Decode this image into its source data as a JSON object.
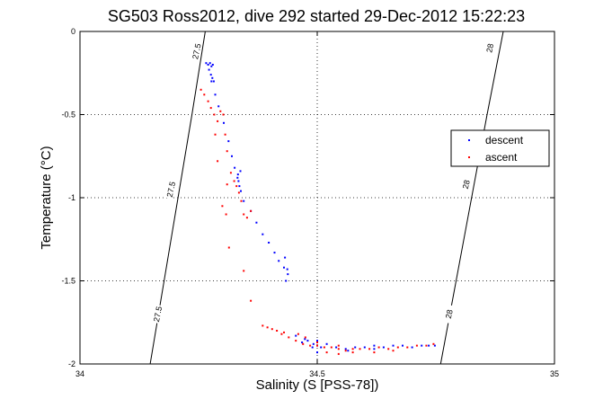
{
  "chart_data": {
    "type": "scatter",
    "title": "SG503 Ross2012, dive 292 started 29-Dec-2012 15:22:23",
    "xlabel": "Salinity (S [PSS-78])",
    "ylabel": "Temperature (°C)",
    "xlim": [
      34,
      35
    ],
    "ylim": [
      -2,
      0
    ],
    "x_ticks": [
      34,
      34.5,
      35
    ],
    "x_tick_labels": [
      "34",
      "34.5",
      "35"
    ],
    "y_ticks": [
      -2,
      -1.5,
      -1,
      -0.5,
      0
    ],
    "y_tick_labels": [
      "-2",
      "-1.5",
      "-1",
      "-0.5",
      "0"
    ],
    "grid": true,
    "legend_position": "right",
    "contours": [
      {
        "label": "27.5",
        "points": [
          [
            34.148,
            -2.0
          ],
          [
            34.236,
            -0.5
          ],
          [
            34.264,
            0.0
          ]
        ]
      },
      {
        "label": "28",
        "points": [
          [
            34.76,
            -2.0
          ],
          [
            34.858,
            -0.5
          ],
          [
            34.892,
            0.0
          ]
        ]
      }
    ],
    "contour_label_positions": [
      {
        "text": "27.5",
        "x": 34.164,
        "y": -1.7
      },
      {
        "text": "27.5",
        "x": 34.192,
        "y": -0.95
      },
      {
        "text": "27.5",
        "x": 34.246,
        "y": -0.12
      },
      {
        "text": "28",
        "x": 34.778,
        "y": -1.7
      },
      {
        "text": "28",
        "x": 34.814,
        "y": -0.92
      },
      {
        "text": "28",
        "x": 34.864,
        "y": -0.1
      }
    ],
    "series": [
      {
        "name": "descent",
        "color": "#0000ff",
        "points": [
          [
            34.266,
            -0.19
          ],
          [
            34.27,
            -0.2
          ],
          [
            34.274,
            -0.19
          ],
          [
            34.277,
            -0.21
          ],
          [
            34.28,
            -0.2
          ],
          [
            34.272,
            -0.23
          ],
          [
            34.276,
            -0.26
          ],
          [
            34.279,
            -0.28
          ],
          [
            34.277,
            -0.3
          ],
          [
            34.282,
            -0.3
          ],
          [
            34.285,
            -0.38
          ],
          [
            34.292,
            -0.45
          ],
          [
            34.303,
            -0.55
          ],
          [
            34.313,
            -0.66
          ],
          [
            34.32,
            -0.75
          ],
          [
            34.326,
            -0.82
          ],
          [
            34.332,
            -0.88
          ],
          [
            34.333,
            -0.86
          ],
          [
            34.334,
            -0.9
          ],
          [
            34.336,
            -0.93
          ],
          [
            34.338,
            -0.84
          ],
          [
            34.339,
            -0.96
          ],
          [
            34.345,
            -1.02
          ],
          [
            34.36,
            -1.08
          ],
          [
            34.372,
            -1.15
          ],
          [
            34.385,
            -1.22
          ],
          [
            34.398,
            -1.27
          ],
          [
            34.41,
            -1.33
          ],
          [
            34.419,
            -1.38
          ],
          [
            34.43,
            -1.42
          ],
          [
            34.434,
            -1.5
          ],
          [
            34.438,
            -1.46
          ],
          [
            34.432,
            -1.36
          ],
          [
            34.437,
            -1.43
          ],
          [
            34.455,
            -1.83
          ],
          [
            34.468,
            -1.87
          ],
          [
            34.48,
            -1.86
          ],
          [
            34.492,
            -1.88
          ],
          [
            34.5,
            -1.89
          ],
          [
            34.508,
            -1.9
          ],
          [
            34.52,
            -1.88
          ],
          [
            34.54,
            -1.9
          ],
          [
            34.56,
            -1.91
          ],
          [
            34.58,
            -1.9
          ],
          [
            34.6,
            -1.9
          ],
          [
            34.62,
            -1.89
          ],
          [
            34.64,
            -1.9
          ],
          [
            34.66,
            -1.89
          ],
          [
            34.68,
            -1.89
          ],
          [
            34.7,
            -1.9
          ],
          [
            34.72,
            -1.89
          ],
          [
            34.735,
            -1.89
          ],
          [
            34.748,
            -1.89
          ],
          [
            34.62,
            -1.91
          ],
          [
            34.565,
            -1.92
          ],
          [
            34.5,
            -1.86
          ],
          [
            34.474,
            -1.85
          ],
          [
            34.49,
            -1.9
          ],
          [
            34.5,
            -1.93
          ]
        ]
      },
      {
        "name": "ascent",
        "color": "#ff0000",
        "points": [
          [
            34.255,
            -0.35
          ],
          [
            34.262,
            -0.38
          ],
          [
            34.27,
            -0.42
          ],
          [
            34.276,
            -0.46
          ],
          [
            34.283,
            -0.5
          ],
          [
            34.29,
            -0.54
          ],
          [
            34.296,
            -0.48
          ],
          [
            34.302,
            -0.5
          ],
          [
            34.306,
            -0.62
          ],
          [
            34.31,
            -0.72
          ],
          [
            34.31,
            -0.92
          ],
          [
            34.318,
            -0.85
          ],
          [
            34.325,
            -0.9
          ],
          [
            34.33,
            -0.93
          ],
          [
            34.335,
            -0.97
          ],
          [
            34.34,
            -1.02
          ],
          [
            34.345,
            -1.1
          ],
          [
            34.352,
            -1.12
          ],
          [
            34.36,
            -1.08
          ],
          [
            34.285,
            -0.62
          ],
          [
            34.29,
            -0.78
          ],
          [
            34.3,
            -1.05
          ],
          [
            34.308,
            -1.1
          ],
          [
            34.314,
            -1.3
          ],
          [
            34.345,
            -1.44
          ],
          [
            34.36,
            -1.62
          ],
          [
            34.385,
            -1.77
          ],
          [
            34.395,
            -1.78
          ],
          [
            34.405,
            -1.79
          ],
          [
            34.415,
            -1.8
          ],
          [
            34.425,
            -1.82
          ],
          [
            34.44,
            -1.84
          ],
          [
            34.455,
            -1.86
          ],
          [
            34.47,
            -1.88
          ],
          [
            34.485,
            -1.89
          ],
          [
            34.5,
            -1.89
          ],
          [
            34.515,
            -1.9
          ],
          [
            34.53,
            -1.9
          ],
          [
            34.545,
            -1.91
          ],
          [
            34.56,
            -1.92
          ],
          [
            34.575,
            -1.91
          ],
          [
            34.59,
            -1.91
          ],
          [
            34.61,
            -1.91
          ],
          [
            34.63,
            -1.9
          ],
          [
            34.65,
            -1.91
          ],
          [
            34.67,
            -1.9
          ],
          [
            34.69,
            -1.9
          ],
          [
            34.71,
            -1.89
          ],
          [
            34.73,
            -1.89
          ],
          [
            34.745,
            -1.88
          ],
          [
            34.52,
            -1.93
          ],
          [
            34.545,
            -1.94
          ],
          [
            34.575,
            -1.93
          ],
          [
            34.475,
            -1.84
          ],
          [
            34.46,
            -1.82
          ],
          [
            34.43,
            -1.81
          ],
          [
            34.5,
            -1.87
          ],
          [
            34.545,
            -1.89
          ],
          [
            34.62,
            -1.93
          ],
          [
            34.66,
            -1.92
          ]
        ]
      }
    ]
  }
}
